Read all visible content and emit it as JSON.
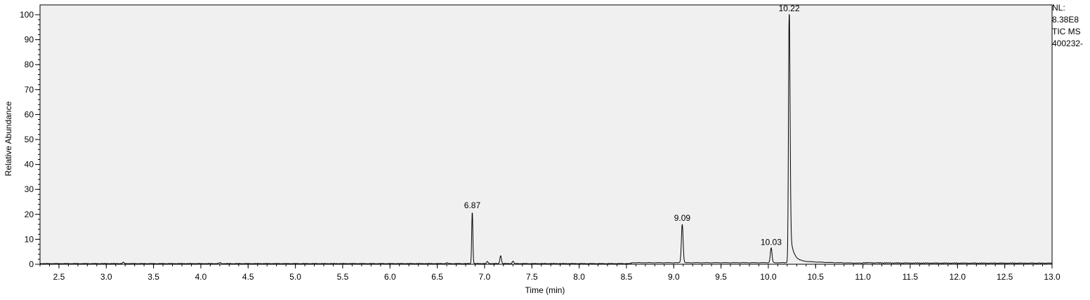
{
  "chart_data": {
    "type": "line",
    "xlabel": "Time (min)",
    "ylabel": "Relative Abundance",
    "xlim": [
      2.3,
      13.0
    ],
    "ylim": [
      0,
      100
    ],
    "x_ticks": [
      2.5,
      3.0,
      3.5,
      4.0,
      4.5,
      5.0,
      5.5,
      6.0,
      6.5,
      7.0,
      7.5,
      8.0,
      8.5,
      9.0,
      9.5,
      10.0,
      10.5,
      11.0,
      11.5,
      12.0,
      12.5,
      13.0
    ],
    "x_tick_labels": [
      "2.5",
      "3.0",
      "3.5",
      "4.0",
      "4.5",
      "5.0",
      "5.5",
      "6.0",
      "6.5",
      "7.0",
      "7.5",
      "8.0",
      "8.5",
      "9.0",
      "9.5",
      "10.0",
      "10.5",
      "11.0",
      "11.5",
      "12.0",
      "12.5",
      "13.0"
    ],
    "y_ticks": [
      0,
      10,
      20,
      30,
      40,
      50,
      60,
      70,
      80,
      90,
      100
    ],
    "y_tick_labels": [
      "0",
      "10",
      "20",
      "30",
      "40",
      "50",
      "60",
      "70",
      "80",
      "90",
      "100"
    ],
    "peaks": [
      {
        "x": 6.87,
        "y": 21,
        "label": "6.87"
      },
      {
        "x": 9.09,
        "y": 16,
        "label": "9.09"
      },
      {
        "x": 10.03,
        "y": 6.3,
        "label": "10.03"
      },
      {
        "x": 10.22,
        "y": 100,
        "label": "10.22"
      }
    ],
    "minor_peaks": [
      {
        "x": 7.17,
        "y": 3.2
      },
      {
        "x": 7.03,
        "y": 0.8
      },
      {
        "x": 7.3,
        "y": 1.0
      },
      {
        "x": 3.18,
        "y": 0.5
      },
      {
        "x": 4.2,
        "y": 0.4
      },
      {
        "x": 6.6,
        "y": 0.3
      }
    ],
    "grid": false,
    "background": "#f0f0f0",
    "line_color": "#000000"
  },
  "info_panel": {
    "lines": [
      "NL:",
      "8.38E8",
      "TIC  MS",
      "400232-"
    ]
  }
}
